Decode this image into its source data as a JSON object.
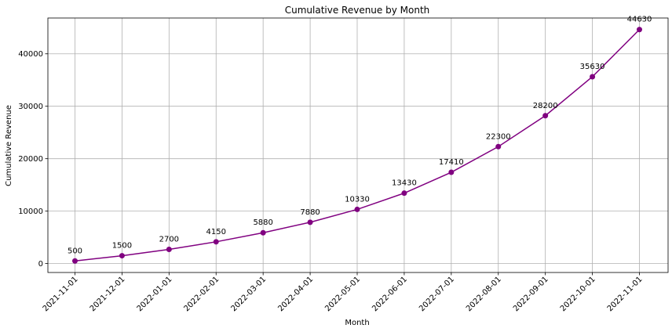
{
  "chart_data": {
    "type": "line",
    "title": "Cumulative Revenue by Month",
    "xlabel": "Month",
    "ylabel": "Cumulative Revenue",
    "x": [
      "2021-11-01",
      "2021-12-01",
      "2022-01-01",
      "2022-02-01",
      "2022-03-01",
      "2022-04-01",
      "2022-05-01",
      "2022-06-01",
      "2022-07-01",
      "2022-08-01",
      "2022-09-01",
      "2022-10-01",
      "2022-11-01"
    ],
    "series": [
      {
        "values": [
          500,
          1500,
          2700,
          4150,
          5880,
          7880,
          10330,
          13430,
          17410,
          22300,
          28200,
          35630,
          44630
        ],
        "color": "#800080"
      }
    ],
    "y_ticks": [
      0,
      10000,
      20000,
      30000,
      40000
    ],
    "ylim": [
      -1700,
      46830
    ],
    "grid": true,
    "data_labels": true
  }
}
